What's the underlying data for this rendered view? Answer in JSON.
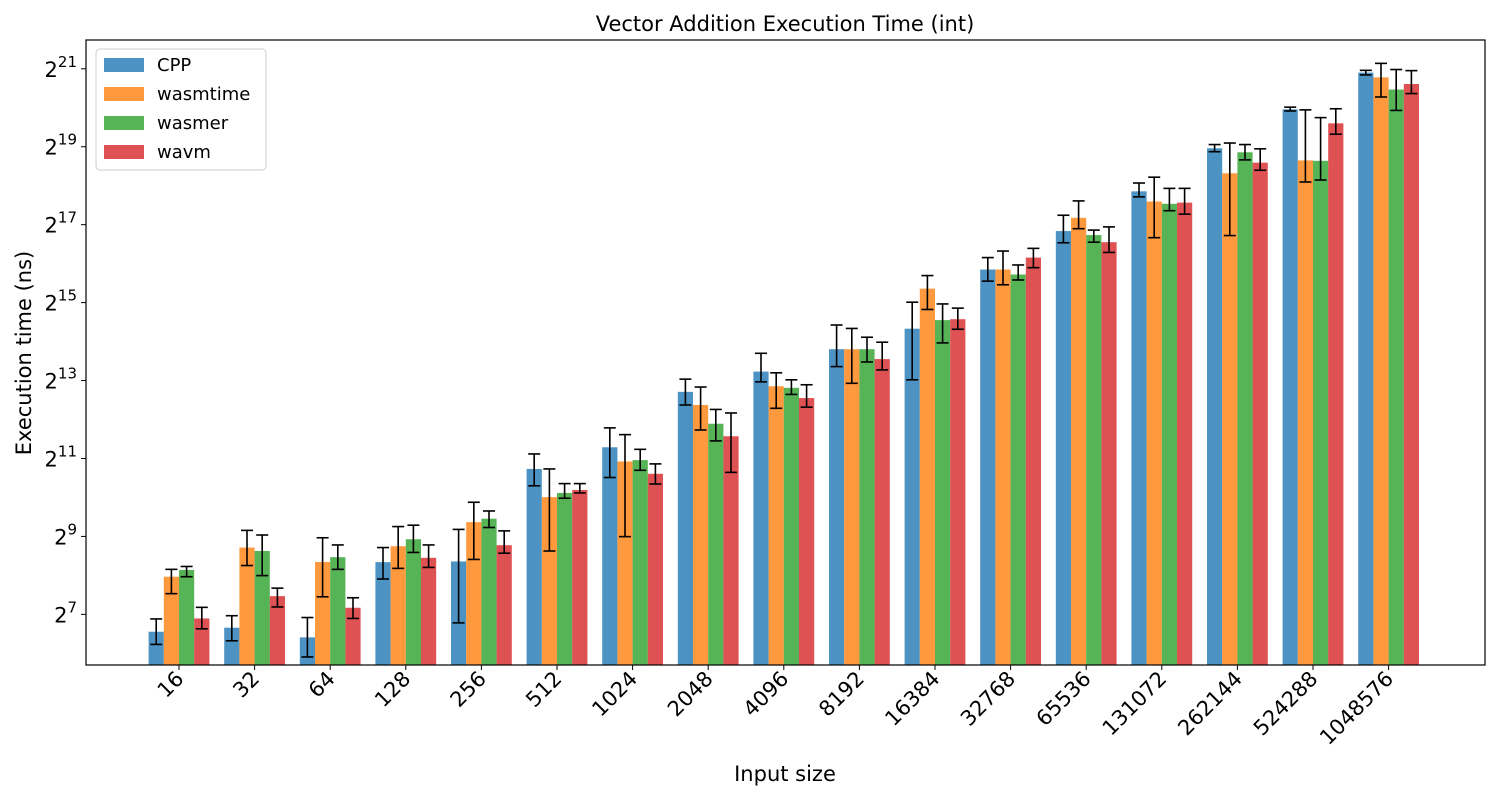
{
  "chart_data": {
    "type": "bar",
    "title": "Vector Addition Execution Time (int)",
    "xlabel": "Input size",
    "ylabel": "Execution time (ns)",
    "y_scale": "log2",
    "ylim": [
      52,
      3500000
    ],
    "y_ticks": [
      {
        "base": "2",
        "exp": "7",
        "value": 128
      },
      {
        "base": "2",
        "exp": "9",
        "value": 512
      },
      {
        "base": "2",
        "exp": "11",
        "value": 2048
      },
      {
        "base": "2",
        "exp": "13",
        "value": 8192
      },
      {
        "base": "2",
        "exp": "15",
        "value": 32768
      },
      {
        "base": "2",
        "exp": "17",
        "value": 131072
      },
      {
        "base": "2",
        "exp": "19",
        "value": 524288
      },
      {
        "base": "2",
        "exp": "21",
        "value": 2097152
      }
    ],
    "categories": [
      "16",
      "32",
      "64",
      "128",
      "256",
      "512",
      "1024",
      "2048",
      "4096",
      "8192",
      "16384",
      "32768",
      "65536",
      "131072",
      "262144",
      "524288",
      "1048576"
    ],
    "legend_position": "top-left",
    "grid": false,
    "series": [
      {
        "name": "CPP",
        "color": "#1f77b4",
        "values": [
          94,
          101,
          85,
          324,
          328,
          1700,
          2500,
          6700,
          9600,
          14300,
          20600,
          59000,
          117000,
          237000,
          510000,
          1020000,
          1960000
        ],
        "errors": [
          [
            75,
            118
          ],
          [
            80,
            125
          ],
          [
            60,
            121
          ],
          [
            240,
            420
          ],
          [
            110,
            580
          ],
          [
            1260,
            2220
          ],
          [
            1460,
            3530
          ],
          [
            5300,
            8400
          ],
          [
            8000,
            13300
          ],
          [
            10500,
            22000
          ],
          [
            8300,
            33000
          ],
          [
            48000,
            73000
          ],
          [
            95000,
            155000
          ],
          [
            215000,
            275000
          ],
          [
            480000,
            545000
          ],
          [
            990000,
            1060000
          ],
          [
            1880000,
            2040000
          ]
        ]
      },
      {
        "name": "wasmtime",
        "color": "#ff7f0e",
        "values": [
          250,
          420,
          325,
          430,
          660,
          1030,
          1940,
          5300,
          7400,
          14300,
          42000,
          59000,
          148000,
          198000,
          327000,
          411000,
          1800000
        ],
        "errors": [
          [
            185,
            285
          ],
          [
            305,
            570
          ],
          [
            175,
            500
          ],
          [
            290,
            610
          ],
          [
            340,
            940
          ],
          [
            395,
            1700
          ],
          [
            510,
            3130
          ],
          [
            3400,
            7300
          ],
          [
            5000,
            9400
          ],
          [
            7800,
            20700
          ],
          [
            29000,
            53000
          ],
          [
            45000,
            82000
          ],
          [
            122000,
            200000
          ],
          [
            104000,
            305000
          ],
          [
            108000,
            560000
          ],
          [
            280000,
            1010000
          ],
          [
            1270000,
            2310000
          ]
        ]
      },
      {
        "name": "wasmer",
        "color": "#2ca02c",
        "values": [
          282,
          395,
          354,
          487,
          702,
          1110,
          1990,
          3800,
          7200,
          14300,
          24000,
          54000,
          109000,
          190000,
          475000,
          408000,
          1450000
        ],
        "errors": [
          [
            250,
            300
          ],
          [
            255,
            525
          ],
          [
            285,
            440
          ],
          [
            385,
            625
          ],
          [
            600,
            805
          ],
          [
            1010,
            1310
          ],
          [
            1660,
            2410
          ],
          [
            2800,
            4900
          ],
          [
            6400,
            8300
          ],
          [
            11400,
            17700
          ],
          [
            16000,
            32000
          ],
          [
            49000,
            64000
          ],
          [
            96000,
            119000
          ],
          [
            168000,
            250000
          ],
          [
            415000,
            545000
          ],
          [
            290000,
            880000
          ],
          [
            1000000,
            2070000
          ]
        ]
      },
      {
        "name": "wavm",
        "color": "#d62728",
        "values": [
          119,
          177,
          144,
          350,
          438,
          1170,
          1560,
          3040,
          6000,
          12000,
          24400,
          73000,
          96000,
          194000,
          395000,
          795000,
          1600000
        ],
        "errors": [
          [
            99,
            145
          ],
          [
            146,
            204
          ],
          [
            119,
            172
          ],
          [
            295,
            440
          ],
          [
            380,
            565
          ],
          [
            1110,
            1310
          ],
          [
            1300,
            1860
          ],
          [
            1600,
            4600
          ],
          [
            5100,
            7600
          ],
          [
            9900,
            16200
          ],
          [
            20400,
            29700
          ],
          [
            61000,
            86000
          ],
          [
            80000,
            126000
          ],
          [
            158000,
            250000
          ],
          [
            345000,
            505000
          ],
          [
            655000,
            1030000
          ],
          [
            1350000,
            2030000
          ]
        ]
      }
    ]
  }
}
